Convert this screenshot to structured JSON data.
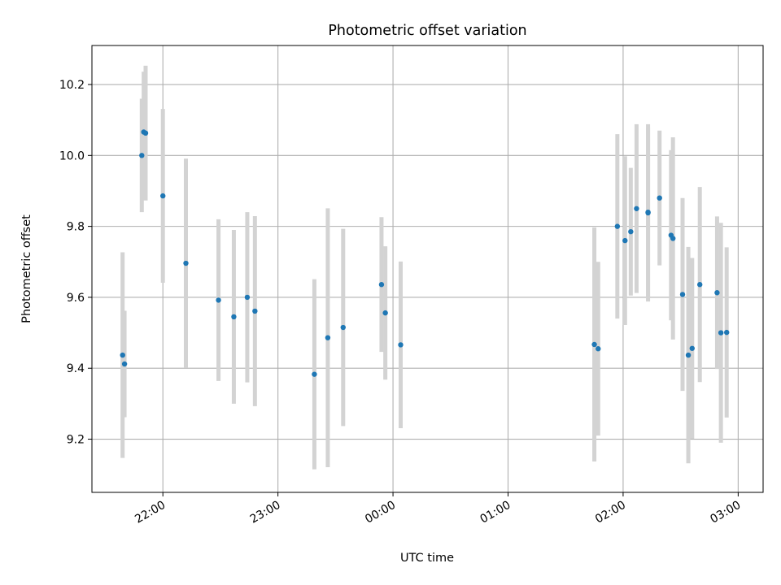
{
  "chart_data": {
    "type": "scatter",
    "title": "Photometric offset variation",
    "xlabel": "UTC time",
    "ylabel": "Photometric offset",
    "x_axis": {
      "kind": "time",
      "range": [
        "21:23",
        "03:13"
      ],
      "ticks": [
        "22:00",
        "23:00",
        "00:00",
        "01:00",
        "02:00",
        "03:00"
      ],
      "tick_label_rotation": "30deg"
    },
    "y_axis": {
      "range": [
        9.05,
        10.31
      ],
      "ticks": [
        9.2,
        9.4,
        9.6,
        9.8,
        10.0,
        10.2
      ],
      "tick_labels": [
        "9.2",
        "9.4",
        "9.6",
        "9.8",
        "10.0",
        "10.2"
      ]
    },
    "grid": true,
    "colors": {
      "marker": "#1f77b4",
      "errorbar": "#d3d3d3",
      "grid": "#b0b0b0"
    },
    "series": [
      {
        "points": [
          {
            "x": "21:39",
            "y": 9.437,
            "err": 0.29
          },
          {
            "x": "21:40",
            "y": 9.412,
            "err": 0.15
          },
          {
            "x": "21:49",
            "y": 10.0,
            "err": 0.16
          },
          {
            "x": "21:50",
            "y": 10.066,
            "err": 0.17
          },
          {
            "x": "21:51",
            "y": 10.063,
            "err": 0.19
          },
          {
            "x": "22:00",
            "y": 9.886,
            "err": 0.245
          },
          {
            "x": "22:12",
            "y": 9.696,
            "err": 0.295
          },
          {
            "x": "22:29",
            "y": 9.592,
            "err": 0.228
          },
          {
            "x": "22:37",
            "y": 9.545,
            "err": 0.245
          },
          {
            "x": "22:44",
            "y": 9.6,
            "err": 0.24
          },
          {
            "x": "22:48",
            "y": 9.561,
            "err": 0.268
          },
          {
            "x": "23:19",
            "y": 9.383,
            "err": 0.268
          },
          {
            "x": "23:26",
            "y": 9.486,
            "err": 0.365
          },
          {
            "x": "23:34",
            "y": 9.515,
            "err": 0.278
          },
          {
            "x": "23:54",
            "y": 9.636,
            "err": 0.19
          },
          {
            "x": "23:56",
            "y": 9.556,
            "err": 0.188
          },
          {
            "x": "00:04",
            "y": 9.466,
            "err": 0.235
          },
          {
            "x": "01:45",
            "y": 9.467,
            "err": 0.33
          },
          {
            "x": "01:47",
            "y": 9.455,
            "err": 0.245
          },
          {
            "x": "01:57",
            "y": 9.8,
            "err": 0.26
          },
          {
            "x": "02:01",
            "y": 9.76,
            "err": 0.238
          },
          {
            "x": "02:04",
            "y": 9.785,
            "err": 0.18
          },
          {
            "x": "02:07",
            "y": 9.85,
            "err": 0.238
          },
          {
            "x": "02:13",
            "y": 9.838,
            "err": 0.25
          },
          {
            "x": "02:13",
            "y": 9.84,
            "err": 0.238
          },
          {
            "x": "02:19",
            "y": 9.88,
            "err": 0.19
          },
          {
            "x": "02:25",
            "y": 9.775,
            "err": 0.24
          },
          {
            "x": "02:26",
            "y": 9.766,
            "err": 0.285
          },
          {
            "x": "02:31",
            "y": 9.608,
            "err": 0.272
          },
          {
            "x": "02:34",
            "y": 9.437,
            "err": 0.305
          },
          {
            "x": "02:36",
            "y": 9.456,
            "err": 0.255
          },
          {
            "x": "02:40",
            "y": 9.636,
            "err": 0.275
          },
          {
            "x": "02:49",
            "y": 9.613,
            "err": 0.215
          },
          {
            "x": "02:51",
            "y": 9.5,
            "err": 0.31
          },
          {
            "x": "02:54",
            "y": 9.501,
            "err": 0.24
          }
        ]
      }
    ]
  }
}
